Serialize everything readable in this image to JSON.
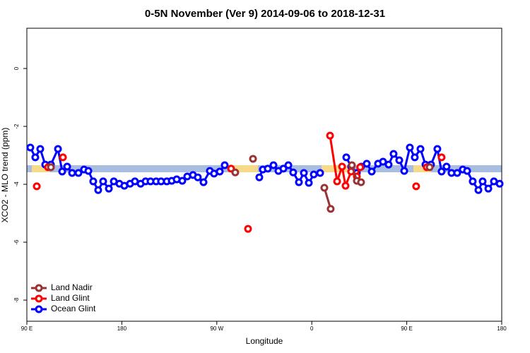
{
  "chart_data": {
    "type": "line",
    "title": "0-5N November (Ver 9)   2014-09-06 to 2018-12-31",
    "x_label": "Longitude",
    "y_label": "XCO2 - MLO trend (ppm)",
    "xlim": [
      90,
      540
    ],
    "xticks": [
      {
        "value": 90,
        "label": "90 E"
      },
      180,
      {
        "value": 270,
        "label": "90 W"
      },
      {
        "value": 360,
        "label": "0"
      },
      {
        "value": 450,
        "label": "90 E"
      },
      {
        "value": 540,
        "label": "180"
      }
    ],
    "ylim": [
      -8.73,
      1.39
    ],
    "yticks": [
      0,
      -2,
      -4,
      -6,
      -8
    ],
    "legend": "bottom-left",
    "series": [
      {
        "name": "Land Nadir",
        "color": "#993333",
        "x": [
          112.8,
          null,
          287.5,
          null,
          304.3,
          null,
          371.9,
          377.9,
          null,
          398.0,
          402.7,
          406.7,
          null,
          471.7
        ],
        "values": [
          -3.41,
          null,
          -3.59,
          null,
          -3.12,
          null,
          -4.12,
          -4.85,
          null,
          -3.34,
          -3.88,
          -3.93,
          null,
          -3.41
        ]
      },
      {
        "name": "Land Glint",
        "color": "#ff0000",
        "x": [
          99.4,
          null,
          110.1,
          null,
          124.2,
          null,
          283.5,
          null,
          299.6,
          null,
          377.3,
          384.0,
          388.7,
          392.0,
          397.3,
          402.7,
          405.9,
          null,
          458.9,
          null,
          469.0,
          null,
          483.0
        ],
        "values": [
          -4.07,
          null,
          -3.41,
          null,
          -3.07,
          null,
          -3.46,
          null,
          -5.54,
          null,
          -2.32,
          -3.9,
          -3.39,
          -4.05,
          -3.56,
          -3.73,
          -3.41,
          null,
          -4.07,
          null,
          -3.41,
          null,
          -3.07
        ]
      },
      {
        "name": "Ocean Glint",
        "color": "#0000ff",
        "x": [
          93.3,
          98.0,
          102.7,
          107.4,
          112.8,
          119.5,
          123.5,
          128.2,
          132.9,
          138.9,
          144.2,
          148.3,
          152.9,
          157.6,
          162.3,
          167.7,
          172.4,
          177.7,
          182.4,
          187.8,
          192.4,
          197.8,
          202.5,
          207.2,
          212.5,
          217.2,
          222.6,
          227.3,
          232.0,
          237.3,
          242.0,
          247.4,
          252.0,
          257.4,
          263.4,
          267.4,
          272.8,
          277.5,
          null,
          310.3,
          313.6,
          318.3,
          323.7,
          328.4,
          333.1,
          337.8,
          342.4,
          347.8,
          352.5,
          357.2,
          361.9,
          367.9,
          null,
          392.7,
          397.3,
          402.7,
          406.7,
          412.1,
          416.8,
          422.8,
          427.5,
          432.8,
          437.5,
          442.9,
          447.6,
          452.9,
          457.6,
          463.0,
          467.7,
          473.0,
          479.0,
          483.0,
          487.7,
          492.4,
          497.8,
          503.1,
          507.2,
          512.5,
          517.9,
          521.9,
          527.3,
          532.6,
          538.0
        ],
        "values": [
          -2.73,
          -3.07,
          -2.78,
          -3.32,
          -3.32,
          -2.78,
          -3.56,
          -3.39,
          -3.61,
          -3.61,
          -3.49,
          -3.54,
          -3.9,
          -4.2,
          -3.9,
          -4.15,
          -3.9,
          -3.98,
          -4.05,
          -3.98,
          -3.9,
          -3.98,
          -3.9,
          -3.9,
          -3.9,
          -3.9,
          -3.9,
          -3.88,
          -3.83,
          -3.88,
          -3.73,
          -3.68,
          -3.76,
          -3.93,
          -3.54,
          -3.63,
          -3.56,
          -3.34,
          null,
          -3.76,
          -3.49,
          -3.46,
          -3.34,
          -3.54,
          -3.46,
          -3.34,
          -3.59,
          -3.93,
          -3.61,
          -3.95,
          -3.66,
          -3.61,
          null,
          -3.07,
          -3.39,
          -3.61,
          -3.39,
          -3.29,
          -3.56,
          -3.29,
          -3.22,
          -3.32,
          -2.95,
          -3.17,
          -3.54,
          -2.73,
          -3.07,
          -2.78,
          -3.32,
          -3.32,
          -2.78,
          -3.56,
          -3.39,
          -3.61,
          -3.61,
          -3.49,
          -3.54,
          -3.9,
          -4.2,
          -3.9,
          -4.15,
          -3.9,
          -3.98
        ]
      }
    ]
  }
}
